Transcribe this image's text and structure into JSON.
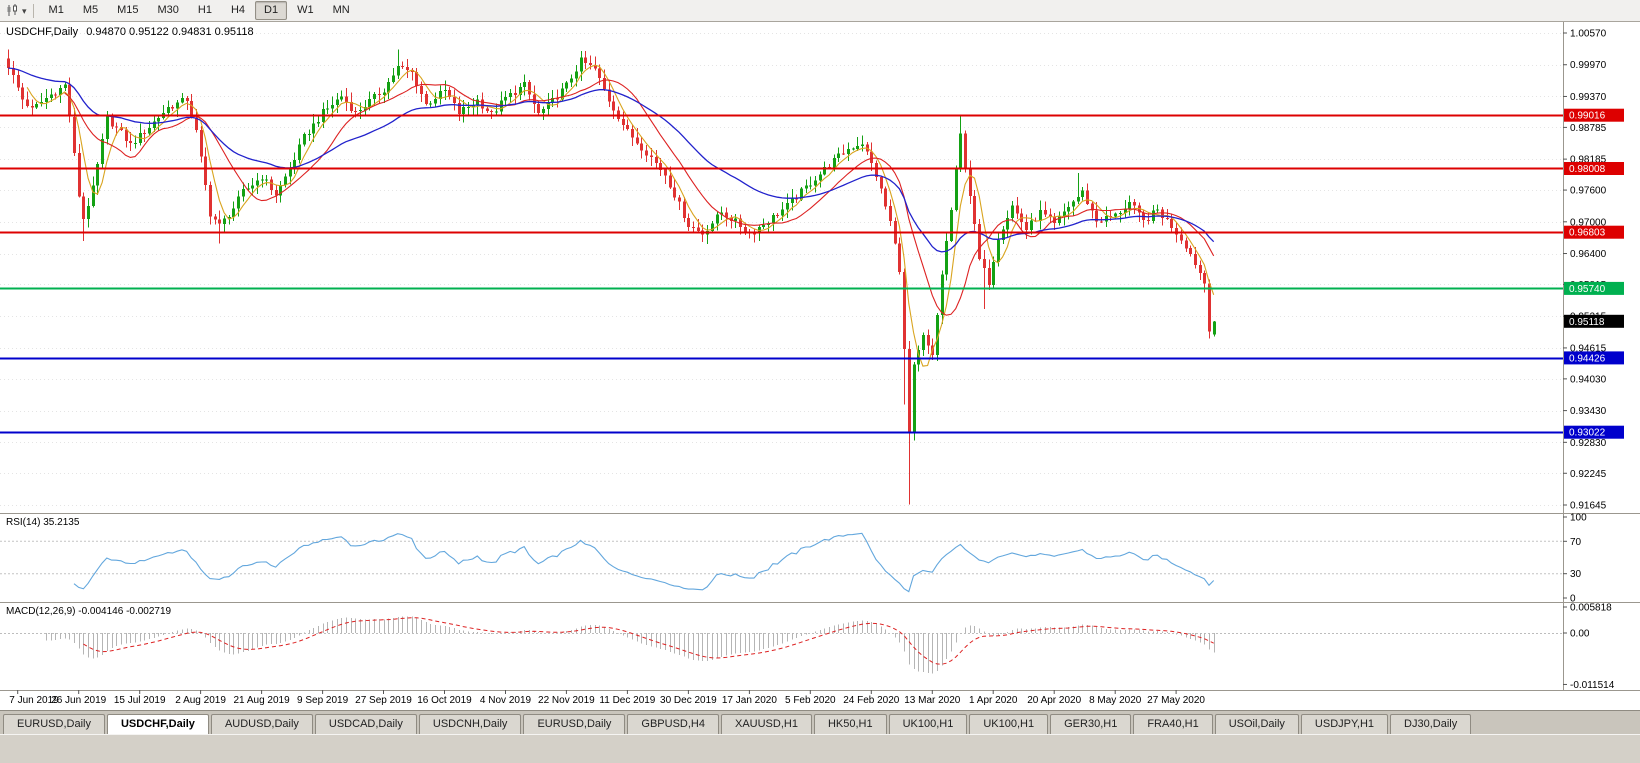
{
  "toolbar": {
    "timeframes": [
      "M1",
      "M5",
      "M15",
      "M30",
      "H1",
      "H4",
      "D1",
      "W1",
      "MN"
    ],
    "active_timeframe": "D1",
    "caret_glyph": "▾",
    "icons": [
      "chart-type-icon",
      "dropdown-caret-icon"
    ]
  },
  "chart": {
    "symbol_label": "USDCHF,Daily",
    "quote_ohlc": "0.94870 0.95122 0.94831 0.95118",
    "rsi_label": "RSI(14) 35.2135",
    "macd_label": "MACD(12,26,9) -0.004146 -0.002719"
  },
  "chart_data": {
    "type": "candlestick",
    "symbol": "USDCHF",
    "timeframe": "Daily",
    "ohlc": {
      "open": "0.94870",
      "high": "0.95122",
      "low": "0.94831",
      "close": "0.95118"
    },
    "indicators": [
      {
        "name": "RSI",
        "params": [
          14
        ],
        "value": 35.2135
      },
      {
        "name": "MACD",
        "params": [
          12,
          26,
          9
        ],
        "values": [
          -0.004146,
          -0.002719
        ]
      }
    ],
    "y_axis_labels": [
      "1.00570",
      "0.99970",
      "0.99370",
      "0.98785",
      "0.98185",
      "0.97600",
      "0.97000",
      "0.96400",
      "0.95815",
      "0.95215",
      "0.94615",
      "0.94030",
      "0.93430",
      "0.92830",
      "0.92245",
      "0.91645"
    ],
    "x_axis_labels": [
      "7 Jun 2019",
      "26 Jun 2019",
      "15 Jul 2019",
      "2 Aug 2019",
      "21 Aug 2019",
      "9 Sep 2019",
      "27 Sep 2019",
      "16 Oct 2019",
      "4 Nov 2019",
      "22 Nov 2019",
      "11 Dec 2019",
      "30 Dec 2019",
      "17 Jan 2020",
      "5 Feb 2020",
      "24 Feb 2020",
      "13 Mar 2020",
      "1 Apr 2020",
      "20 Apr 2020",
      "8 May 2020",
      "27 May 2020"
    ],
    "levels": [
      {
        "price": 0.99016,
        "label": "0.99016",
        "color": "#dd0000"
      },
      {
        "price": 0.98008,
        "label": "0.98008",
        "color": "#dd0000"
      },
      {
        "price": 0.96803,
        "label": "0.96803",
        "color": "#dd0000"
      },
      {
        "price": 0.9574,
        "label": "0.95740",
        "color": "#00b050"
      },
      {
        "price": 0.94426,
        "label": "0.94426",
        "color": "#0000cc"
      },
      {
        "price": 0.93022,
        "label": "0.93022",
        "color": "#0000cc"
      }
    ],
    "current_price": {
      "value": 0.95118,
      "label": "0.95118",
      "color": "#000000"
    },
    "rsi": {
      "axis_labels": [
        "100",
        "70",
        "30",
        "0"
      ],
      "level_lines": [
        70,
        30
      ]
    },
    "macd": {
      "axis_labels": [
        {
          "v": 0.005818,
          "label": "0.005818"
        },
        {
          "v": 0,
          "label": "0.00"
        },
        {
          "v": -0.011514,
          "label": "-0.011514"
        }
      ]
    },
    "candle_count": 258,
    "anchors": [
      [
        0,
        0.9995
      ],
      [
        3,
        0.9932
      ],
      [
        5,
        0.9912
      ],
      [
        8,
        0.9934
      ],
      [
        12,
        0.9958
      ],
      [
        13,
        0.99
      ],
      [
        15,
        0.975
      ],
      [
        16,
        0.9706
      ],
      [
        18,
        0.9762
      ],
      [
        21,
        0.9896
      ],
      [
        24,
        0.9868
      ],
      [
        26,
        0.9845
      ],
      [
        30,
        0.988
      ],
      [
        34,
        0.9916
      ],
      [
        38,
        0.9932
      ],
      [
        40,
        0.987
      ],
      [
        43,
        0.9716
      ],
      [
        45,
        0.9692
      ],
      [
        48,
        0.9726
      ],
      [
        50,
        0.9756
      ],
      [
        54,
        0.9786
      ],
      [
        57,
        0.9752
      ],
      [
        60,
        0.98
      ],
      [
        63,
        0.986
      ],
      [
        67,
        0.9906
      ],
      [
        71,
        0.9938
      ],
      [
        74,
        0.9906
      ],
      [
        77,
        0.9928
      ],
      [
        80,
        0.995
      ],
      [
        83,
        0.9992
      ],
      [
        86,
        0.9982
      ],
      [
        89,
        0.9922
      ],
      [
        93,
        0.9948
      ],
      [
        96,
        0.9906
      ],
      [
        100,
        0.993
      ],
      [
        103,
        0.9902
      ],
      [
        106,
        0.9934
      ],
      [
        110,
        0.9958
      ],
      [
        113,
        0.9904
      ],
      [
        116,
        0.9928
      ],
      [
        119,
        0.9958
      ],
      [
        122,
        1.0004
      ],
      [
        125,
        0.9988
      ],
      [
        128,
        0.993
      ],
      [
        132,
        0.987
      ],
      [
        136,
        0.9832
      ],
      [
        140,
        0.979
      ],
      [
        143,
        0.9732
      ],
      [
        145,
        0.9694
      ],
      [
        148,
        0.9678
      ],
      [
        152,
        0.9718
      ],
      [
        155,
        0.97
      ],
      [
        158,
        0.9678
      ],
      [
        162,
        0.9702
      ],
      [
        166,
        0.973
      ],
      [
        171,
        0.9774
      ],
      [
        175,
        0.9808
      ],
      [
        179,
        0.9838
      ],
      [
        182,
        0.985
      ],
      [
        185,
        0.9788
      ],
      [
        188,
        0.97
      ],
      [
        190,
        0.9612
      ],
      [
        192,
        0.93
      ],
      [
        193,
        0.9424
      ],
      [
        195,
        0.9482
      ],
      [
        197,
        0.9444
      ],
      [
        199,
        0.9602
      ],
      [
        201,
        0.9722
      ],
      [
        203,
        0.9864
      ],
      [
        205,
        0.9752
      ],
      [
        207,
        0.9628
      ],
      [
        209,
        0.9586
      ],
      [
        211,
        0.9672
      ],
      [
        214,
        0.973
      ],
      [
        217,
        0.9686
      ],
      [
        220,
        0.9718
      ],
      [
        223,
        0.9694
      ],
      [
        226,
        0.973
      ],
      [
        229,
        0.9756
      ],
      [
        232,
        0.9702
      ],
      [
        236,
        0.9712
      ],
      [
        239,
        0.9736
      ],
      [
        242,
        0.97
      ],
      [
        245,
        0.9722
      ],
      [
        248,
        0.9692
      ],
      [
        251,
        0.9656
      ],
      [
        253,
        0.9622
      ],
      [
        255,
        0.9585
      ],
      [
        256,
        0.95
      ],
      [
        257,
        0.95118
      ]
    ],
    "wick_overrides": [
      {
        "idx": 0,
        "high": 1.0008
      },
      {
        "idx": 16,
        "low": 0.9664
      },
      {
        "idx": 45,
        "low": 0.9659
      },
      {
        "idx": 83,
        "high": 1.0026
      },
      {
        "idx": 122,
        "high": 1.0023
      },
      {
        "idx": 148,
        "low": 0.9662
      },
      {
        "idx": 182,
        "high": 0.9862
      },
      {
        "idx": 191,
        "low": 0.9355
      },
      {
        "idx": 192,
        "low": 0.9165
      },
      {
        "idx": 203,
        "high": 0.9901
      },
      {
        "idx": 208,
        "low": 0.9535
      },
      {
        "idx": 228,
        "high": 0.9792
      }
    ],
    "last_candle": {
      "o": 0.9487,
      "h": 0.95122,
      "l": 0.94831,
      "c": 0.95118
    },
    "colors": {
      "up": "#14a114",
      "down": "#e03232",
      "ma_fast": "#d9a41f",
      "ma_mid": "#dd2222",
      "ma_slow": "#2222cc",
      "rsi": "#63a7dd",
      "macd_hist": "#b5b5b5",
      "macd_signal": "#dd2222",
      "grid": "#e4e4e4",
      "background": "#ffffff"
    }
  },
  "tabs": {
    "items": [
      {
        "label": "EURUSD,Daily",
        "active": false
      },
      {
        "label": "USDCHF,Daily",
        "active": true
      },
      {
        "label": "AUDUSD,Daily",
        "active": false
      },
      {
        "label": "USDCAD,Daily",
        "active": false
      },
      {
        "label": "USDCNH,Daily",
        "active": false
      },
      {
        "label": "EURUSD,Daily",
        "active": false
      },
      {
        "label": "GBPUSD,H4",
        "active": false
      },
      {
        "label": "XAUUSD,H1",
        "active": false
      },
      {
        "label": "HK50,H1",
        "active": false
      },
      {
        "label": "UK100,H1",
        "active": false
      },
      {
        "label": "UK100,H1",
        "active": false
      },
      {
        "label": "GER30,H1",
        "active": false
      },
      {
        "label": "FRA40,H1",
        "active": false
      },
      {
        "label": "USOil,Daily",
        "active": false
      },
      {
        "label": "USDJPY,H1",
        "active": false
      },
      {
        "label": "DJ30,Daily",
        "active": false
      }
    ]
  }
}
